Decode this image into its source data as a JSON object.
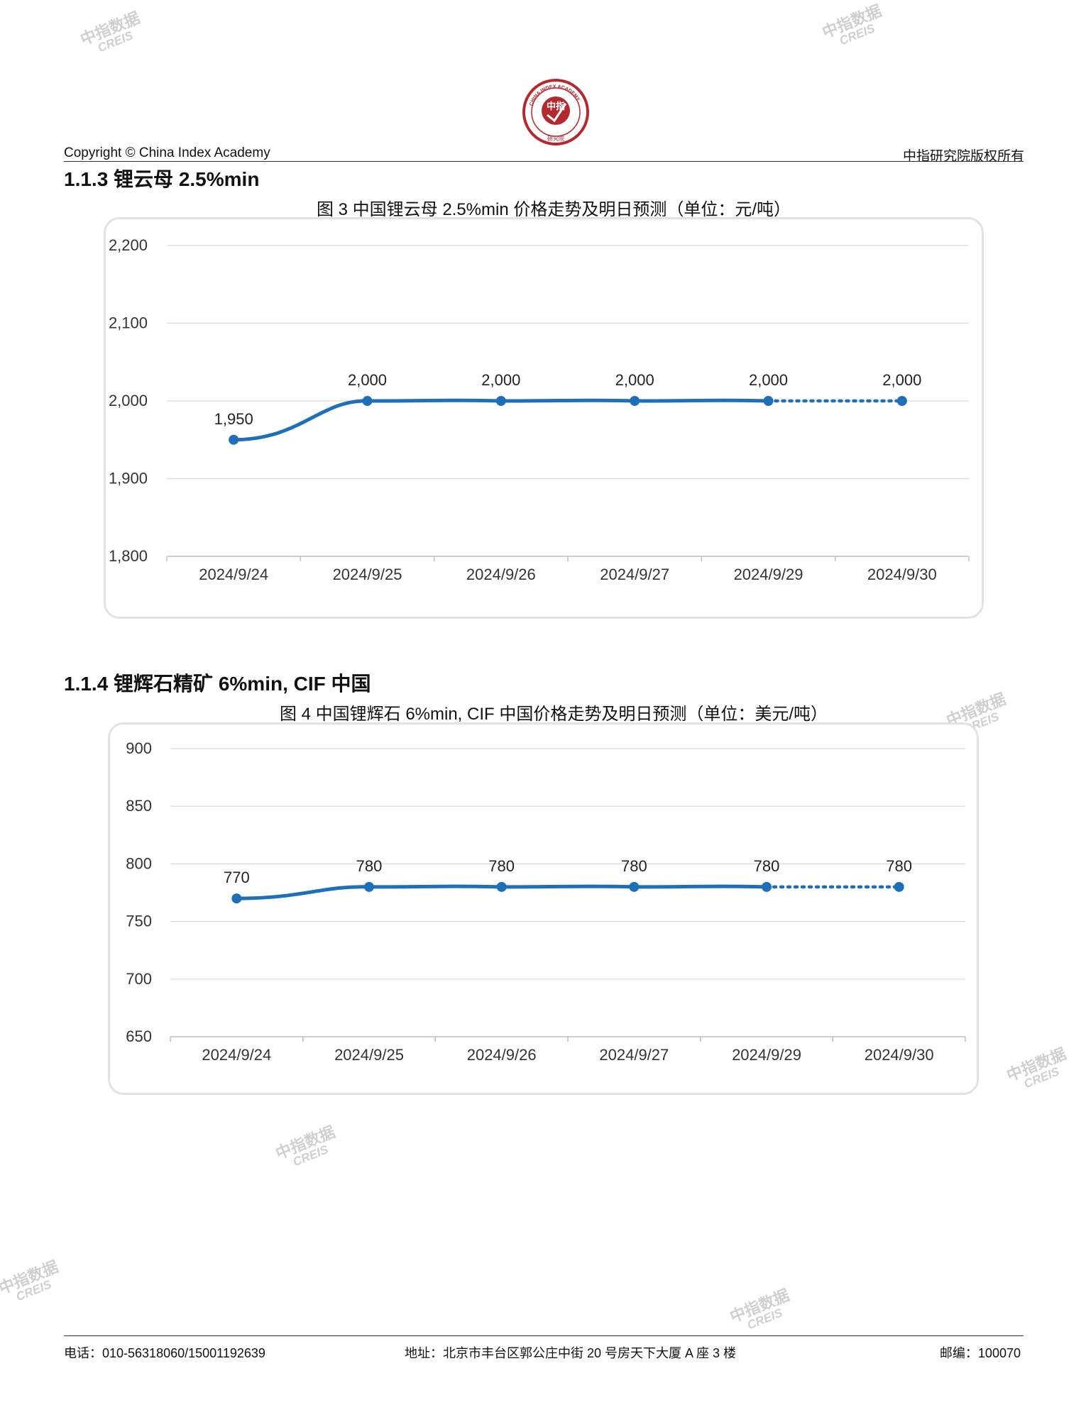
{
  "header": {
    "left": "Copyright © China Index Academy",
    "right": "中指研究院版权所有",
    "logo_ring_text": "CHINA INDEX ACADEMY",
    "logo_center": "中指",
    "logo_bottom": "研究院"
  },
  "watermark": {
    "line1": "中指数据",
    "line2": "CREIS"
  },
  "sections": [
    {
      "heading": "1.1.3 锂云母 2.5%min",
      "chart_title": "图 3 中国锂云母 2.5%min 价格走势及明日预测（单位：元/吨）"
    },
    {
      "heading": "1.1.4 锂辉石精矿 6%min, CIF 中国",
      "chart_title": "图 4 中国锂辉石 6%min, CIF 中国价格走势及明日预测（单位：美元/吨）"
    }
  ],
  "chart_data": [
    {
      "type": "line",
      "title": "图 3 中国锂云母 2.5%min 价格走势及明日预测（单位：元/吨）",
      "categories": [
        "2024/9/24",
        "2024/9/25",
        "2024/9/26",
        "2024/9/27",
        "2024/9/29",
        "2024/9/30"
      ],
      "values": [
        1950,
        2000,
        2000,
        2000,
        2000,
        2000
      ],
      "data_labels": [
        "1,950",
        "2,000",
        "2,000",
        "2,000",
        "2,000",
        "2,000"
      ],
      "yticks": [
        "1,800",
        "1,900",
        "2,000",
        "2,100",
        "2,200"
      ],
      "ylim": [
        1800,
        2200
      ],
      "forecast_from_index": 4,
      "grid": true,
      "line_color": "#1f6fb8"
    },
    {
      "type": "line",
      "title": "图 4 中国锂辉石 6%min, CIF 中国价格走势及明日预测（单位：美元/吨）",
      "categories": [
        "2024/9/24",
        "2024/9/25",
        "2024/9/26",
        "2024/9/27",
        "2024/9/29",
        "2024/9/30"
      ],
      "values": [
        770,
        780,
        780,
        780,
        780,
        780
      ],
      "data_labels": [
        "770",
        "780",
        "780",
        "780",
        "780",
        "780"
      ],
      "yticks": [
        "650",
        "700",
        "750",
        "800",
        "850",
        "900"
      ],
      "ylim": [
        650,
        900
      ],
      "forecast_from_index": 4,
      "grid": true,
      "line_color": "#1f6fb8"
    }
  ],
  "footer": {
    "phone": "电话：010-56318060/15001192639",
    "address": "地址：北京市丰台区郭公庄中街 20 号房天下大厦 A 座 3 楼",
    "postcode": "邮编：100070"
  }
}
